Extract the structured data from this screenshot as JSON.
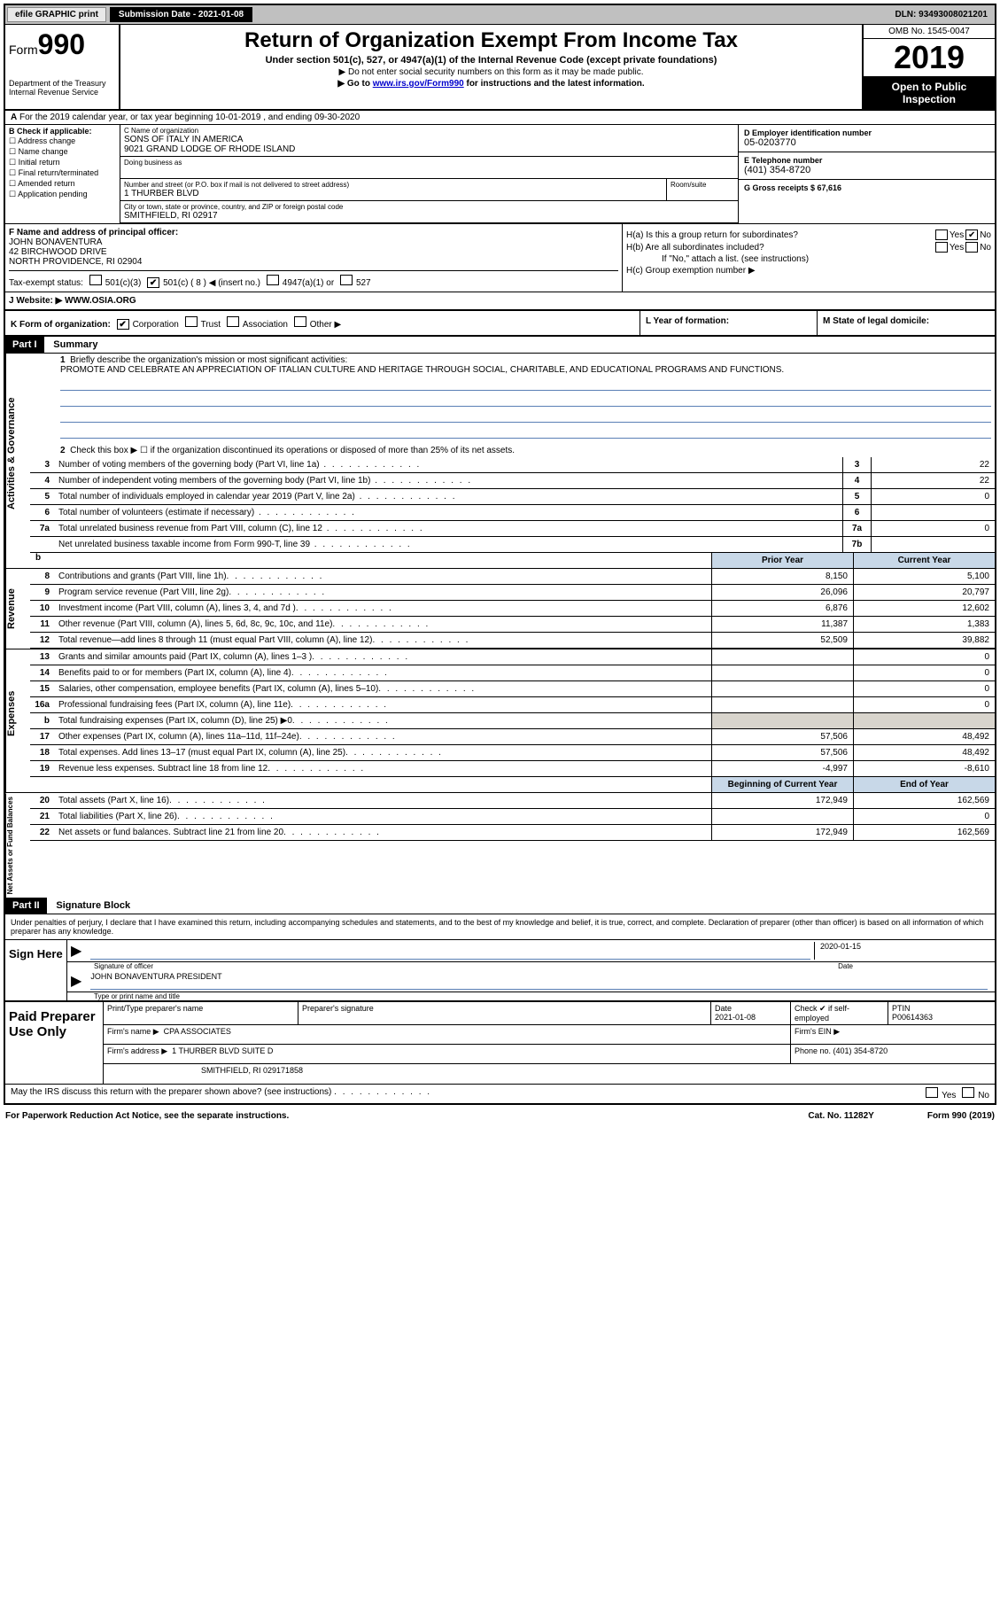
{
  "topbar": {
    "efile": "efile GRAPHIC print",
    "submission_label": "Submission Date - 2021-01-08",
    "dln": "DLN: 93493008021201"
  },
  "header": {
    "form_label": "Form",
    "form_number": "990",
    "dept": "Department of the Treasury\nInternal Revenue Service",
    "title": "Return of Organization Exempt From Income Tax",
    "subtitle1": "Under section 501(c), 527, or 4947(a)(1) of the Internal Revenue Code (except private foundations)",
    "subtitle2": "▶ Do not enter social security numbers on this form as it may be made public.",
    "subtitle3_pre": "▶ Go to ",
    "subtitle3_link": "www.irs.gov/Form990",
    "subtitle3_post": " for instructions and the latest information.",
    "omb": "OMB No. 1545-0047",
    "year": "2019",
    "open": "Open to Public Inspection"
  },
  "line_a": "For the 2019 calendar year, or tax year beginning 10-01-2019    , and ending 09-30-2020",
  "box_b": {
    "label": "B Check if applicable:",
    "opts": [
      "Address change",
      "Name change",
      "Initial return",
      "Final return/terminated",
      "Amended return",
      "Application pending"
    ]
  },
  "box_c": {
    "name_label": "C Name of organization",
    "name1": "SONS OF ITALY IN AMERICA",
    "name2": "9021 GRAND LODGE OF RHODE ISLAND",
    "dba_label": "Doing business as",
    "addr_label": "Number and street (or P.O. box if mail is not delivered to street address)",
    "room_label": "Room/suite",
    "addr": "1 THURBER BLVD",
    "city_label": "City or town, state or province, country, and ZIP or foreign postal code",
    "city": "SMITHFIELD, RI  02917"
  },
  "box_d": {
    "ein_label": "D Employer identification number",
    "ein": "05-0203770",
    "tel_label": "E Telephone number",
    "tel": "(401) 354-8720",
    "gross_label": "G Gross receipts $ 67,616"
  },
  "box_f": {
    "label": "F  Name and address of principal officer:",
    "name": "JOHN BONAVENTURA",
    "addr1": "42 BIRCHWOOD DRIVE",
    "addr2": "NORTH PROVIDENCE, RI  02904"
  },
  "box_h": {
    "a": "H(a)  Is this a group return for subordinates?",
    "b": "H(b)  Are all subordinates included?",
    "b_note": "If \"No,\" attach a list. (see instructions)",
    "c": "H(c)  Group exemption number ▶",
    "yes": "Yes",
    "no": "No",
    "check": "✔"
  },
  "tax_status": {
    "label": "Tax-exempt status:",
    "opts": [
      "501(c)(3)",
      "501(c) ( 8 ) ◀ (insert no.)",
      "4947(a)(1) or",
      "527"
    ],
    "checked_idx": 1
  },
  "website": {
    "label": "J    Website: ▶",
    "val": "WWW.OSIA.ORG"
  },
  "klm": {
    "k": "K Form of organization:",
    "k_opts": [
      "Corporation",
      "Trust",
      "Association",
      "Other ▶"
    ],
    "k_checked": 0,
    "l": "L Year of formation:",
    "m": "M State of legal domicile:"
  },
  "part1": {
    "hdr": "Part I",
    "title": "Summary",
    "l1": "Briefly describe the organization's mission or most significant activities:",
    "mission": "PROMOTE AND CELEBRATE AN APPRECIATION OF ITALIAN CULTURE AND HERITAGE THROUGH SOCIAL, CHARITABLE, AND EDUCATIONAL PROGRAMS AND FUNCTIONS.",
    "l2": "Check this box ▶ ☐  if the organization discontinued its operations or disposed of more than 25% of its net assets.",
    "gov_lines": [
      {
        "n": "3",
        "d": "Number of voting members of the governing body (Part VI, line 1a)",
        "c": "3",
        "v": "22"
      },
      {
        "n": "4",
        "d": "Number of independent voting members of the governing body (Part VI, line 1b)",
        "c": "4",
        "v": "22"
      },
      {
        "n": "5",
        "d": "Total number of individuals employed in calendar year 2019 (Part V, line 2a)",
        "c": "5",
        "v": "0"
      },
      {
        "n": "6",
        "d": "Total number of volunteers (estimate if necessary)",
        "c": "6",
        "v": ""
      },
      {
        "n": "7a",
        "d": "Total unrelated business revenue from Part VIII, column (C), line 12",
        "c": "7a",
        "v": "0"
      },
      {
        "n": "",
        "d": "Net unrelated business taxable income from Form 990-T, line 39",
        "c": "7b",
        "v": ""
      }
    ],
    "prior_hdr": "Prior Year",
    "current_hdr": "Current Year",
    "rev_lines": [
      {
        "n": "8",
        "d": "Contributions and grants (Part VIII, line 1h)",
        "py": "8,150",
        "cy": "5,100"
      },
      {
        "n": "9",
        "d": "Program service revenue (Part VIII, line 2g)",
        "py": "26,096",
        "cy": "20,797"
      },
      {
        "n": "10",
        "d": "Investment income (Part VIII, column (A), lines 3, 4, and 7d )",
        "py": "6,876",
        "cy": "12,602"
      },
      {
        "n": "11",
        "d": "Other revenue (Part VIII, column (A), lines 5, 6d, 8c, 9c, 10c, and 11e)",
        "py": "11,387",
        "cy": "1,383"
      },
      {
        "n": "12",
        "d": "Total revenue—add lines 8 through 11 (must equal Part VIII, column (A), line 12)",
        "py": "52,509",
        "cy": "39,882"
      }
    ],
    "exp_lines": [
      {
        "n": "13",
        "d": "Grants and similar amounts paid (Part IX, column (A), lines 1–3 )",
        "py": "",
        "cy": "0"
      },
      {
        "n": "14",
        "d": "Benefits paid to or for members (Part IX, column (A), line 4)",
        "py": "",
        "cy": "0"
      },
      {
        "n": "15",
        "d": "Salaries, other compensation, employee benefits (Part IX, column (A), lines 5–10)",
        "py": "",
        "cy": "0"
      },
      {
        "n": "16a",
        "d": "Professional fundraising fees (Part IX, column (A), line 11e)",
        "py": "",
        "cy": "0"
      },
      {
        "n": "b",
        "d": "Total fundraising expenses (Part IX, column (D), line 25) ▶0",
        "py": "",
        "cy": "",
        "shaded": true
      },
      {
        "n": "17",
        "d": "Other expenses (Part IX, column (A), lines 11a–11d, 11f–24e)",
        "py": "57,506",
        "cy": "48,492"
      },
      {
        "n": "18",
        "d": "Total expenses. Add lines 13–17 (must equal Part IX, column (A), line 25)",
        "py": "57,506",
        "cy": "48,492"
      },
      {
        "n": "19",
        "d": "Revenue less expenses. Subtract line 18 from line 12",
        "py": "-4,997",
        "cy": "-8,610"
      }
    ],
    "na_hdr1": "Beginning of Current Year",
    "na_hdr2": "End of Year",
    "na_lines": [
      {
        "n": "20",
        "d": "Total assets (Part X, line 16)",
        "py": "172,949",
        "cy": "162,569"
      },
      {
        "n": "21",
        "d": "Total liabilities (Part X, line 26)",
        "py": "",
        "cy": "0"
      },
      {
        "n": "22",
        "d": "Net assets or fund balances. Subtract line 21 from line 20",
        "py": "172,949",
        "cy": "162,569"
      }
    ],
    "side_gov": "Activities & Governance",
    "side_rev": "Revenue",
    "side_exp": "Expenses",
    "side_na": "Net Assets or Fund Balances"
  },
  "part2": {
    "hdr": "Part II",
    "title": "Signature Block",
    "decl": "Under penalties of perjury, I declare that I have examined this return, including accompanying schedules and statements, and to the best of my knowledge and belief, it is true, correct, and complete. Declaration of preparer (other than officer) is based on all information of which preparer has any knowledge.",
    "sign_here": "Sign Here",
    "sig_officer": "Signature of officer",
    "sig_date": "2020-01-15",
    "date_label": "Date",
    "officer_name": "JOHN BONAVENTURA  PRESIDENT",
    "type_label": "Type or print name and title",
    "paid": "Paid Preparer Use Only",
    "prep_name_label": "Print/Type preparer's name",
    "prep_sig_label": "Preparer's signature",
    "prep_date": "2021-01-08",
    "check_if": "Check ✔ if self-employed",
    "ptin_label": "PTIN",
    "ptin": "P00614363",
    "firm_name_label": "Firm's name    ▶",
    "firm_name": "CPA ASSOCIATES",
    "firm_ein_label": "Firm's EIN ▶",
    "firm_addr_label": "Firm's address ▶",
    "firm_addr1": "1 THURBER BLVD SUITE D",
    "firm_addr2": "SMITHFIELD, RI  029171858",
    "phone_label": "Phone no. (401) 354-8720",
    "discuss": "May the IRS discuss this return with the preparer shown above? (see instructions)"
  },
  "footer": {
    "left": "For Paperwork Reduction Act Notice, see the separate instructions.",
    "mid": "Cat. No. 11282Y",
    "right": "Form 990 (2019)"
  }
}
